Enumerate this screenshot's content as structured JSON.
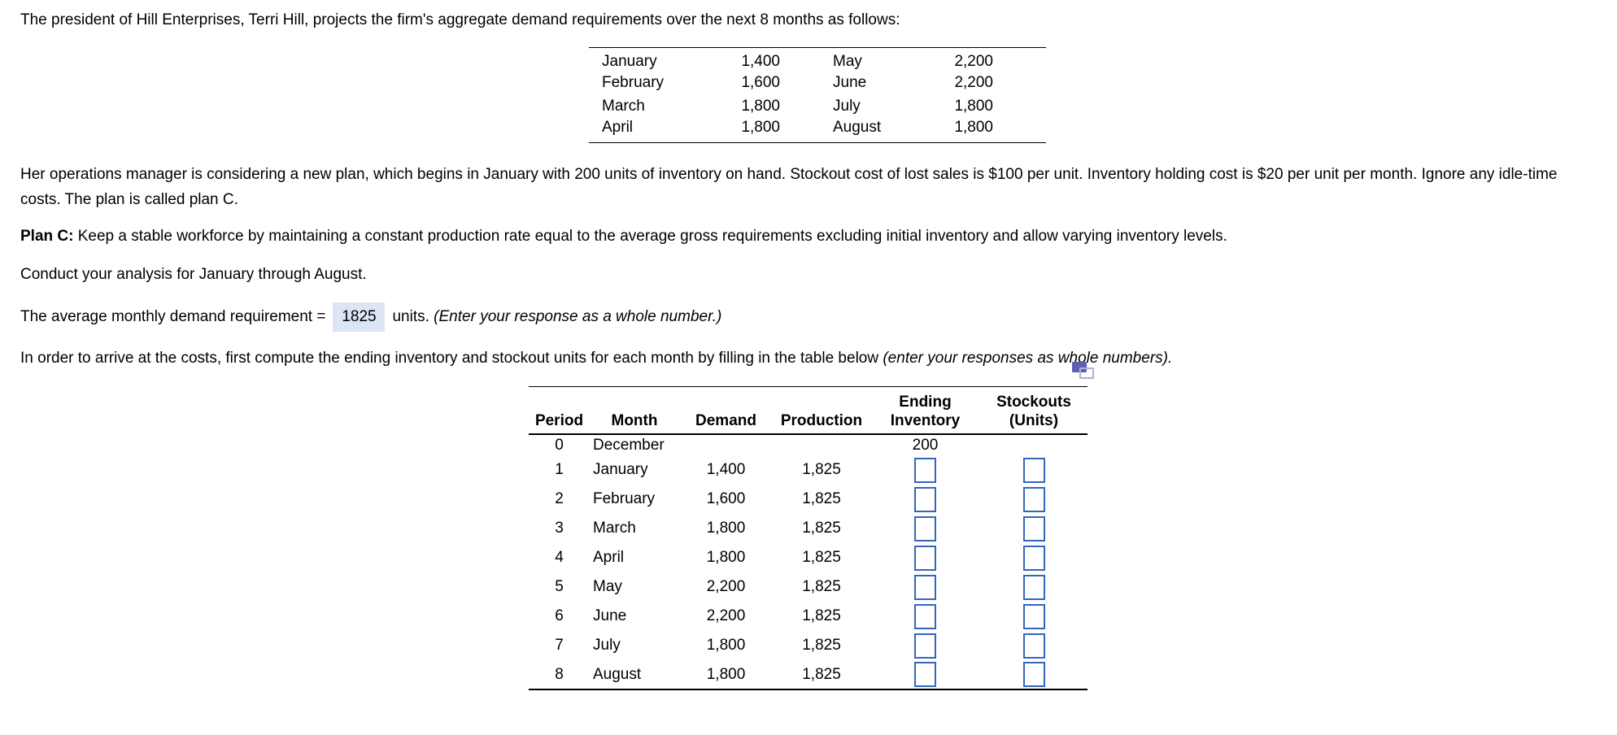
{
  "colors": {
    "input_border": "#3465bd",
    "answer_highlight": "#dbe5f3",
    "icon_dark": "#5c61b1",
    "icon_light": "#a9b0da"
  },
  "intro": "The president of Hill Enterprises, Terri Hill, projects the firm's aggregate demand requirements over the next 8 months as follows:",
  "demand_table": {
    "rows": [
      {
        "month_left": "January",
        "value_left": "1,400",
        "month_right": "May",
        "value_right": "2,200"
      },
      {
        "month_left": "February",
        "value_left": "1,600",
        "month_right": "June",
        "value_right": "2,200"
      },
      {
        "month_left": "March",
        "value_left": "1,800",
        "month_right": "July",
        "value_right": "1,800"
      },
      {
        "month_left": "April",
        "value_left": "1,800",
        "month_right": "August",
        "value_right": "1,800"
      }
    ]
  },
  "plan_paragraph": "Her operations manager is considering a new plan, which begins in January with 200 units of inventory on hand. Stockout cost of lost sales is $100 per unit. Inventory holding cost is $20 per unit per month. Ignore any idle-time costs. The plan is called plan C.",
  "plan_c": {
    "label": "Plan C:",
    "text": " Keep a stable workforce by maintaining a constant production rate equal to the average gross requirements excluding initial inventory and allow varying inventory levels."
  },
  "conduct": "Conduct your analysis for January through August.",
  "average_line": {
    "prefix": "The average monthly demand requirement =",
    "value": "1825",
    "suffix": "units.",
    "note": "(Enter your response as a whole number.)"
  },
  "instruction": {
    "text": "In order to arrive at the costs, first compute the ending inventory and stockout units for each month by filling in the table below",
    "note": "(enter your responses as whole numbers)."
  },
  "icons": {
    "copy_icon": "duplicate-window-copy-icon"
  },
  "worksheet": {
    "headers": {
      "period": "Period",
      "month": "Month",
      "demand": "Demand",
      "production": "Production",
      "ending_line1": "Ending",
      "ending_line2": "Inventory",
      "stockouts_line1": "Stockouts",
      "stockouts_line2": "(Units)"
    },
    "initial": {
      "period": "0",
      "month": "December",
      "ending_inventory": "200"
    },
    "rows": [
      {
        "period": "1",
        "month": "January",
        "demand": "1,400",
        "production": "1,825"
      },
      {
        "period": "2",
        "month": "February",
        "demand": "1,600",
        "production": "1,825"
      },
      {
        "period": "3",
        "month": "March",
        "demand": "1,800",
        "production": "1,825"
      },
      {
        "period": "4",
        "month": "April",
        "demand": "1,800",
        "production": "1,825"
      },
      {
        "period": "5",
        "month": "May",
        "demand": "2,200",
        "production": "1,825"
      },
      {
        "period": "6",
        "month": "June",
        "demand": "2,200",
        "production": "1,825"
      },
      {
        "period": "7",
        "month": "July",
        "demand": "1,800",
        "production": "1,825"
      },
      {
        "period": "8",
        "month": "August",
        "demand": "1,800",
        "production": "1,825"
      }
    ]
  }
}
